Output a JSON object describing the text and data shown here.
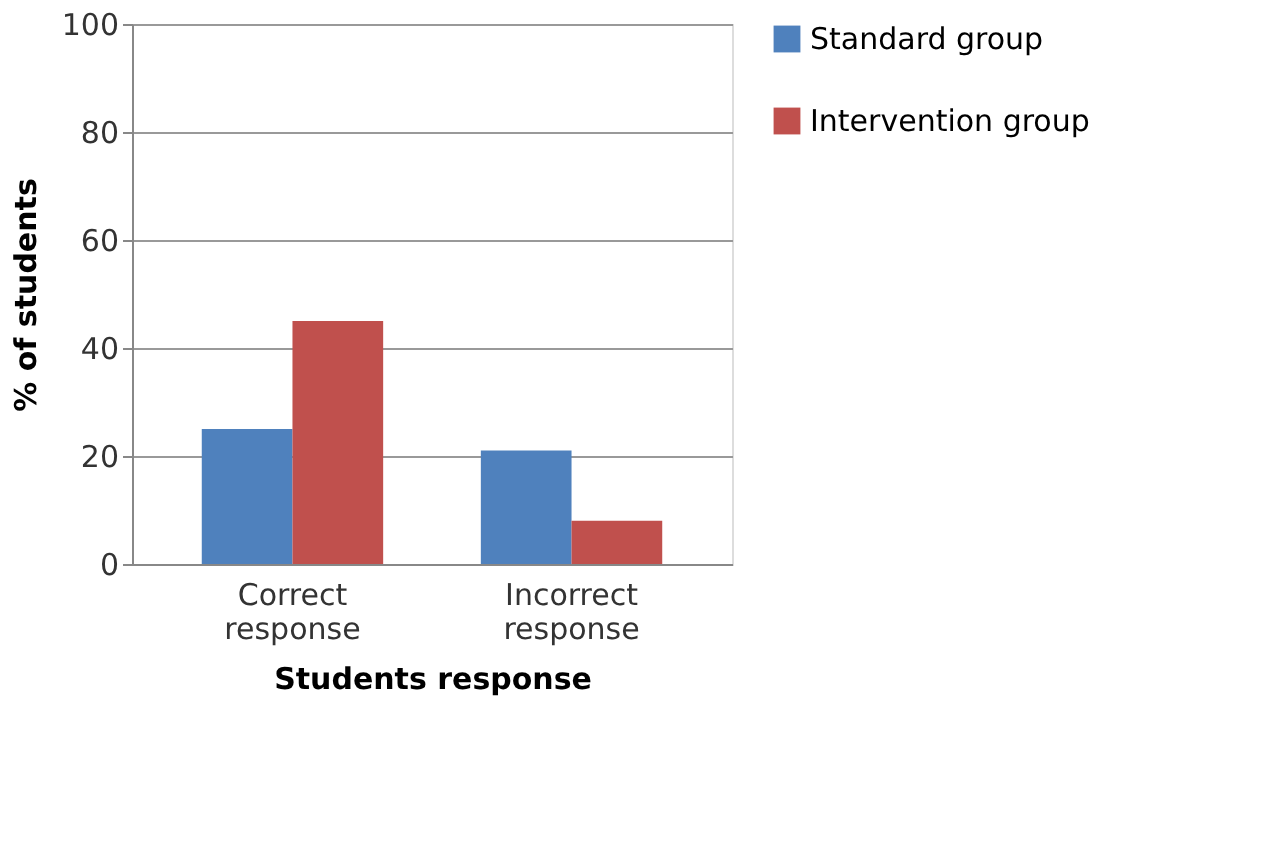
{
  "chart_data": {
    "type": "bar",
    "xlabel": "Students response",
    "ylabel": "% of students",
    "categories": [
      "Correct response",
      "Incorrect response"
    ],
    "series": [
      {
        "name": "Standard group",
        "color": "#4f81bd",
        "values": [
          25,
          21
        ]
      },
      {
        "name": "Intervention group",
        "color": "#c0504d",
        "values": [
          45,
          8
        ]
      }
    ],
    "ylim": [
      0,
      100
    ],
    "yticks": [
      0,
      20,
      40,
      60,
      80,
      100
    ],
    "grid": "y",
    "legend": "right"
  }
}
